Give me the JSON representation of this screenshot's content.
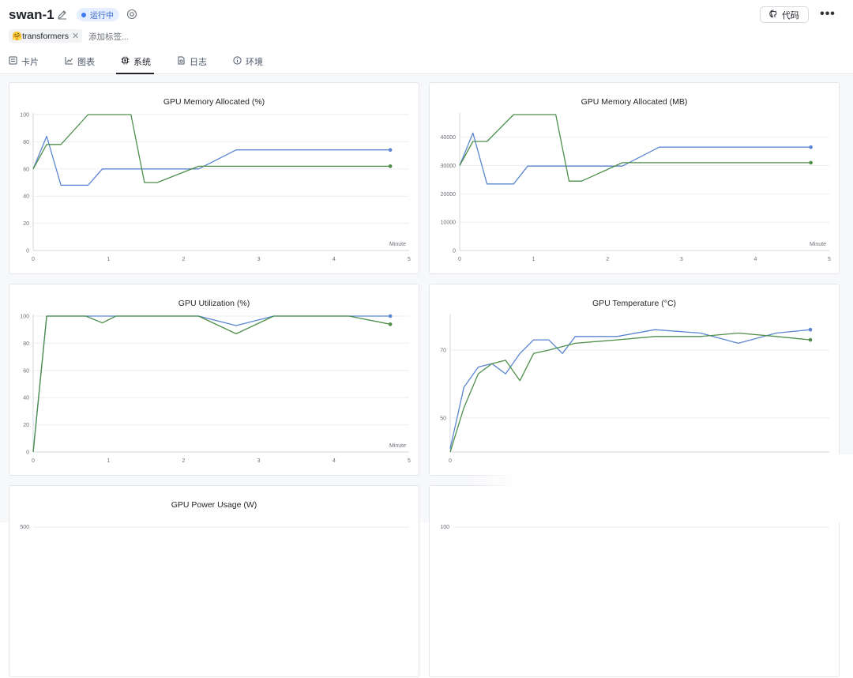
{
  "header": {
    "title": "swan-1",
    "status": "运行中",
    "code_label": "代码",
    "more_label": "•••"
  },
  "tags": {
    "items": [
      {
        "label": "🤗transformers"
      }
    ],
    "add_placeholder": "添加标签..."
  },
  "tabs": [
    {
      "label": "卡片",
      "icon": "card-icon"
    },
    {
      "label": "图表",
      "icon": "chart-icon"
    },
    {
      "label": "系统",
      "icon": "chip-icon",
      "active": true
    },
    {
      "label": "日志",
      "icon": "log-icon"
    },
    {
      "label": "环境",
      "icon": "info-icon"
    }
  ],
  "colors": {
    "series_blue": "#5b86d1",
    "series_green": "#4e8f4a",
    "active_tab": "#1f2329",
    "status_dot": "#3d7bf0"
  },
  "cards": [
    {
      "title": "GPU Memory Allocated (%)"
    },
    {
      "title": "GPU Memory Allocated (MB)"
    },
    {
      "title": "GPU Utilization (%)"
    },
    {
      "title": "GPU Temperature (°C)"
    },
    {
      "title": "GPU Power Usage (W)"
    },
    {
      "title": ""
    }
  ],
  "chart_data": [
    {
      "type": "line",
      "title": "GPU Memory Allocated (%)",
      "xlabel": "Minute",
      "xlim": [
        0,
        5
      ],
      "ylim": [
        0,
        100
      ],
      "xticks": [
        "0",
        "1",
        "2",
        "3",
        "4",
        "5"
      ],
      "yticks": [
        "0",
        "20",
        "40",
        "60",
        "80",
        "100"
      ],
      "series": [
        {
          "color": "#5b86d1",
          "x": [
            0,
            0.18,
            0.37,
            0.73,
            0.92,
            2.2,
            2.7,
            4.75
          ],
          "y": [
            60,
            84,
            48,
            48,
            60,
            60,
            74,
            74
          ]
        },
        {
          "color": "#4e8f4a",
          "x": [
            0,
            0.18,
            0.37,
            0.73,
            1.3,
            1.48,
            1.65,
            2.2,
            4.75
          ],
          "y": [
            60,
            78,
            78,
            100,
            100,
            50,
            50,
            62,
            62
          ]
        }
      ]
    },
    {
      "type": "line",
      "title": "GPU Memory Allocated (MB)",
      "xlabel": "Minute",
      "xlim": [
        0,
        5
      ],
      "ylim": [
        0,
        48000
      ],
      "xticks": [
        "0",
        "1",
        "2",
        "3",
        "4",
        "5"
      ],
      "yticks": [
        "0",
        "10000",
        "20000",
        "30000",
        "40000"
      ],
      "series": [
        {
          "color": "#5b86d1",
          "x": [
            0,
            0.18,
            0.37,
            0.73,
            0.92,
            2.2,
            2.7,
            4.75
          ],
          "y": [
            30000,
            41500,
            23500,
            23500,
            29800,
            29800,
            36500,
            36500
          ]
        },
        {
          "color": "#4e8f4a",
          "x": [
            0,
            0.18,
            0.37,
            0.73,
            1.3,
            1.48,
            1.65,
            2.2,
            4.75
          ],
          "y": [
            30000,
            38500,
            38500,
            49000,
            49000,
            24500,
            24500,
            31000,
            31000
          ]
        }
      ]
    },
    {
      "type": "line",
      "title": "GPU Utilization (%)",
      "xlabel": "Minute",
      "xlim": [
        0,
        5
      ],
      "ylim": [
        0,
        100
      ],
      "xticks": [
        "0",
        "1",
        "2",
        "3",
        "4",
        "5"
      ],
      "yticks": [
        "0",
        "20",
        "40",
        "60",
        "80",
        "100"
      ],
      "series": [
        {
          "color": "#5b86d1",
          "x": [
            0,
            0.18,
            0.7,
            0.92,
            1.1,
            2.2,
            2.7,
            3.2,
            4.2,
            4.75
          ],
          "y": [
            0,
            100,
            100,
            100,
            100,
            100,
            93,
            100,
            100,
            100
          ]
        },
        {
          "color": "#4e8f4a",
          "x": [
            0,
            0.18,
            0.7,
            0.92,
            1.1,
            2.2,
            2.7,
            3.2,
            4.2,
            4.75
          ],
          "y": [
            0,
            100,
            100,
            95,
            100,
            100,
            87,
            100,
            100,
            94
          ]
        }
      ]
    },
    {
      "type": "line",
      "title": "GPU Temperature (°C)",
      "xlabel": "",
      "xlim": [
        0,
        5
      ],
      "ylim": [
        40,
        80
      ],
      "xticks": [
        "0"
      ],
      "yticks": [
        "50",
        "70"
      ],
      "series": [
        {
          "color": "#5b86d1",
          "x": [
            0,
            0.18,
            0.37,
            0.55,
            0.73,
            0.92,
            1.1,
            1.3,
            1.48,
            1.65,
            2.2,
            2.7,
            3.3,
            3.8,
            4.3,
            4.75
          ],
          "y": [
            41,
            59,
            65,
            66,
            63,
            69,
            73,
            73,
            69,
            74,
            74,
            76,
            75,
            72,
            75,
            76
          ]
        },
        {
          "color": "#4e8f4a",
          "x": [
            0,
            0.18,
            0.37,
            0.55,
            0.73,
            0.92,
            1.1,
            1.3,
            1.65,
            2.2,
            2.7,
            3.3,
            3.8,
            4.3,
            4.75
          ],
          "y": [
            40,
            53,
            63,
            66,
            67,
            61,
            69,
            70,
            72,
            73,
            74,
            74,
            75,
            74,
            73
          ]
        }
      ]
    },
    {
      "type": "line",
      "title": "GPU Power Usage (W)",
      "xlabel": "",
      "xlim": [
        0,
        5
      ],
      "ylim": [
        0,
        500
      ],
      "xticks": [],
      "yticks": [
        "500"
      ],
      "series": []
    },
    {
      "type": "line",
      "title": "",
      "xlabel": "",
      "xlim": [
        0,
        5
      ],
      "ylim": [
        0,
        100
      ],
      "xticks": [],
      "yticks": [
        "100"
      ],
      "series": []
    }
  ]
}
